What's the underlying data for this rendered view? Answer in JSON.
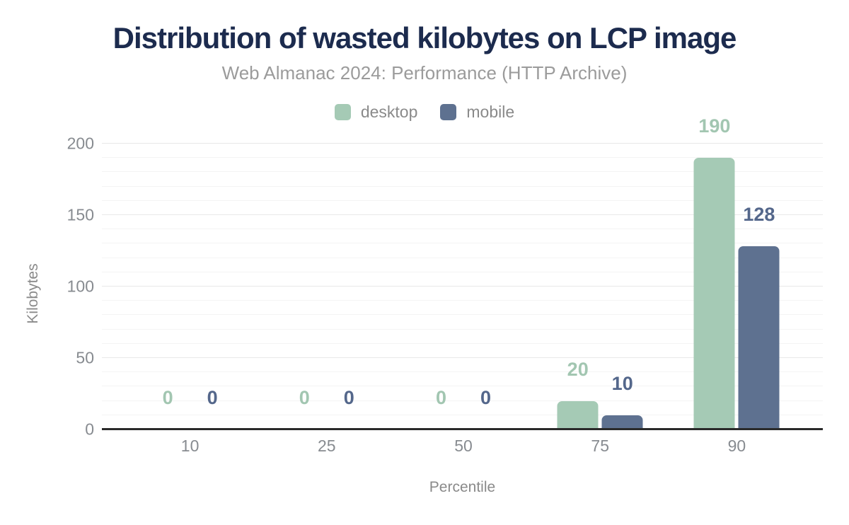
{
  "title": "Distribution of wasted kilobytes on LCP image",
  "subtitle": "Web Almanac 2024: Performance (HTTP Archive)",
  "chart_data": {
    "type": "bar",
    "categories": [
      "10",
      "25",
      "50",
      "75",
      "90"
    ],
    "series": [
      {
        "name": "desktop",
        "color": "#a5cab5",
        "label_color": "#a2c6b1",
        "values": [
          0,
          0,
          0,
          20,
          190
        ]
      },
      {
        "name": "mobile",
        "color": "#5e7190",
        "label_color": "#54678b",
        "values": [
          0,
          0,
          0,
          10,
          128
        ]
      }
    ],
    "title": "Distribution of wasted kilobytes on LCP image",
    "subtitle": "Web Almanac 2024: Performance (HTTP Archive)",
    "xlabel": "Percentile",
    "ylabel": "Kilobytes",
    "ylim": [
      0,
      200
    ],
    "y_major_ticks": [
      0,
      50,
      100,
      150,
      200
    ],
    "y_minor_step": 10,
    "grid": true,
    "legend_position": "top",
    "data_labels": true
  },
  "colors": {
    "title": "#1c2b4e",
    "subtitle": "#9b9b9b",
    "legend_text": "#8a8a8a",
    "tick": "#878b90",
    "axis_title": "#8a8a8a",
    "grid_major": "#e8e8e8",
    "grid_minor": "#f4f4f4",
    "axis_line": "#2a2a2a",
    "background": "#ffffff"
  }
}
